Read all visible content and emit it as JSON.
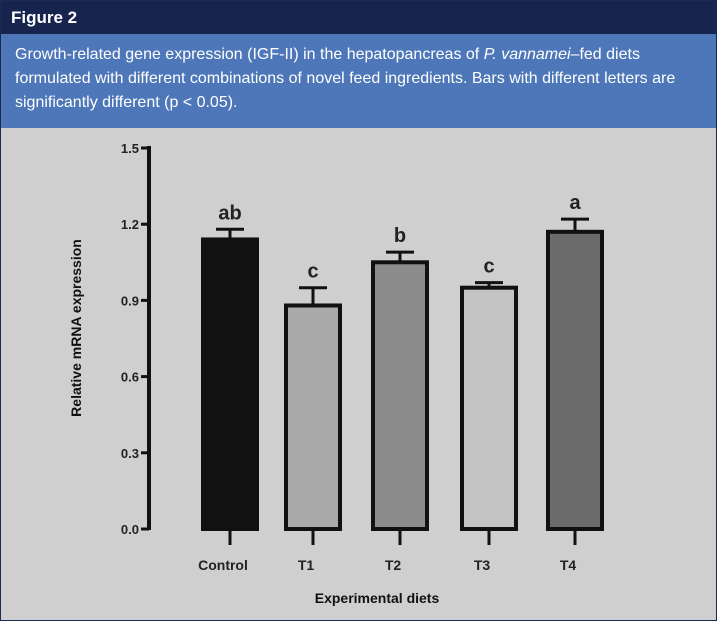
{
  "figure_label": "Figure 2",
  "caption": {
    "before_italic": "Growth-related gene expression (IGF-II) in the hepatopancreas of ",
    "italic": "P. vannamei",
    "after_italic": "–fed diets formulated with different combinations of novel feed ingredients. Bars with different letters are significantly different (p < 0.05)."
  },
  "colors": {
    "header": "#17244e",
    "caption": "#4d77b8",
    "panel": "#cfcfcf"
  },
  "chart_data": {
    "type": "bar",
    "title": "",
    "xlabel": "Experimental diets",
    "ylabel": "Relative mRNA expression",
    "categories": [
      "Control",
      "T1",
      "T2",
      "T3",
      "T4"
    ],
    "values": [
      1.14,
      0.88,
      1.05,
      0.95,
      1.17
    ],
    "errors": [
      0.04,
      0.07,
      0.04,
      0.02,
      0.05
    ],
    "significance_letters": [
      "ab",
      "c",
      "b",
      "c",
      "a"
    ],
    "bar_colors": [
      "#111111",
      "#a9a9a9",
      "#8c8c8c",
      "#c4c4c4",
      "#6b6b6b"
    ],
    "ylim": [
      0,
      1.5
    ],
    "yticks": [
      "0.0",
      "0.3",
      "0.6",
      "0.9",
      "1.2",
      "1.5"
    ],
    "grid": false
  }
}
